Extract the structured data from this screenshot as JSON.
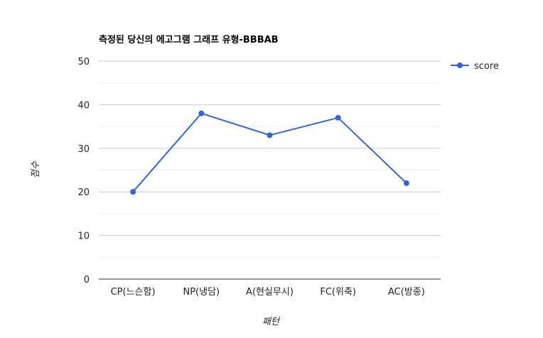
{
  "chart_data": {
    "type": "line",
    "title": "측정된 당신의 에고그램 그래프 유형-BBBAB",
    "xlabel": "패턴",
    "ylabel": "점수",
    "categories": [
      "CP(느슨함)",
      "NP(냉담)",
      "A(현실무시)",
      "FC(위축)",
      "AC(방종)"
    ],
    "series": [
      {
        "name": "score",
        "values": [
          20,
          38,
          33,
          37,
          22
        ],
        "color": "#3366cc"
      }
    ],
    "ylim": [
      0,
      50
    ],
    "yticks": [
      0,
      10,
      20,
      30,
      40,
      50
    ],
    "grid": true,
    "minor_grid": true,
    "legend_position": "right"
  }
}
